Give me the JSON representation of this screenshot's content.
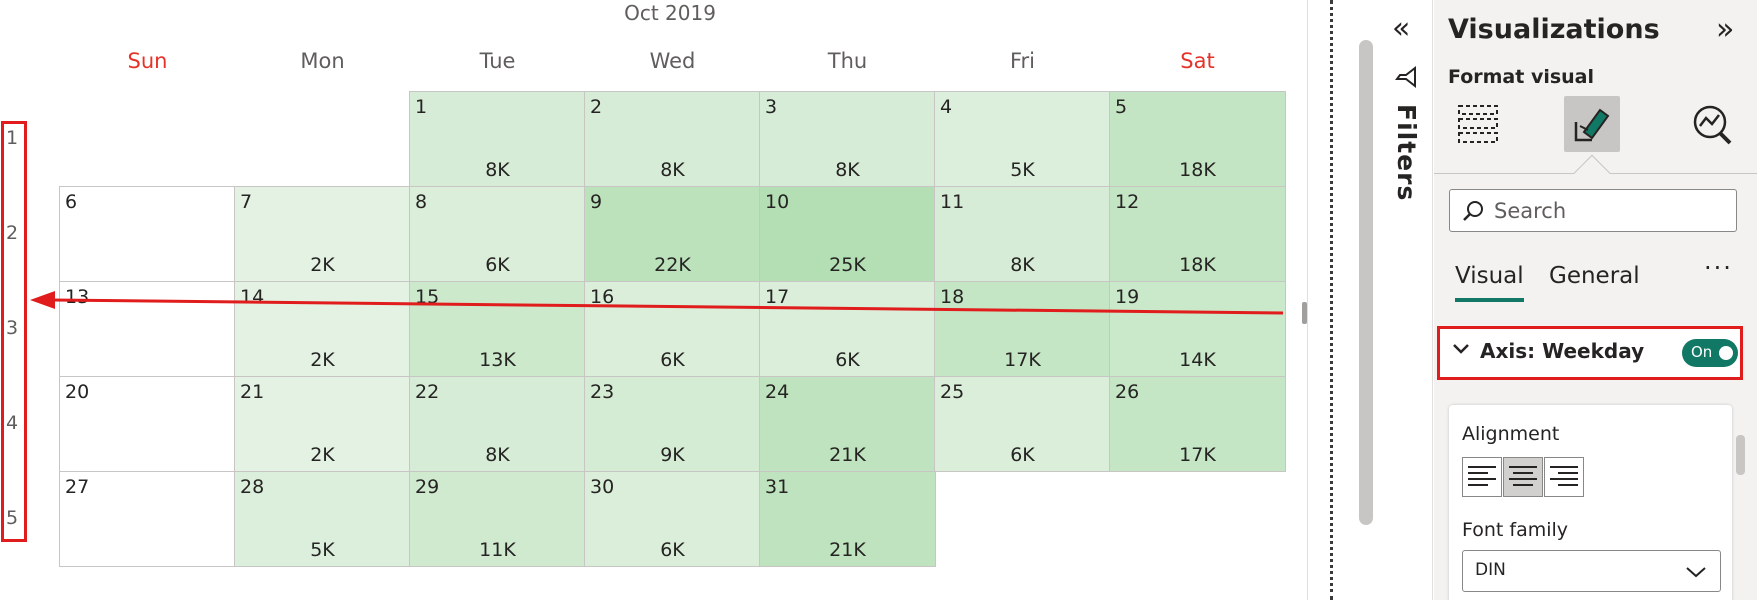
{
  "calendar": {
    "month_title": "Oct 2019",
    "weekdays": [
      {
        "label": "Sun",
        "weekend": true
      },
      {
        "label": "Mon",
        "weekend": false
      },
      {
        "label": "Tue",
        "weekend": false
      },
      {
        "label": "Wed",
        "weekend": false
      },
      {
        "label": "Thu",
        "weekend": false
      },
      {
        "label": "Fri",
        "weekend": false
      },
      {
        "label": "Sat",
        "weekend": true
      }
    ],
    "week_numbers": [
      "1",
      "2",
      "3",
      "4",
      "5"
    ],
    "days": [
      {
        "day": "1",
        "week": 0,
        "weekday": 2,
        "value": "8K",
        "fill": "#d6ecd6"
      },
      {
        "day": "2",
        "week": 0,
        "weekday": 3,
        "value": "8K",
        "fill": "#d6ecd6"
      },
      {
        "day": "3",
        "week": 0,
        "weekday": 4,
        "value": "8K",
        "fill": "#d6ecd6"
      },
      {
        "day": "4",
        "week": 0,
        "weekday": 5,
        "value": "5K",
        "fill": "#dcefdc"
      },
      {
        "day": "5",
        "week": 0,
        "weekday": 6,
        "value": "18K",
        "fill": "#c3e5c3"
      },
      {
        "day": "6",
        "week": 1,
        "weekday": 0,
        "value": "",
        "fill": "#ffffff"
      },
      {
        "day": "7",
        "week": 1,
        "weekday": 1,
        "value": "2K",
        "fill": "#e3f2e3"
      },
      {
        "day": "8",
        "week": 1,
        "weekday": 2,
        "value": "6K",
        "fill": "#daeeda"
      },
      {
        "day": "9",
        "week": 1,
        "weekday": 3,
        "value": "22K",
        "fill": "#bce2bc"
      },
      {
        "day": "10",
        "week": 1,
        "weekday": 4,
        "value": "25K",
        "fill": "#b4dfb4"
      },
      {
        "day": "11",
        "week": 1,
        "weekday": 5,
        "value": "8K",
        "fill": "#d6ecd6"
      },
      {
        "day": "12",
        "week": 1,
        "weekday": 6,
        "value": "18K",
        "fill": "#c3e5c3"
      },
      {
        "day": "13",
        "week": 2,
        "weekday": 0,
        "value": "",
        "fill": "#ffffff"
      },
      {
        "day": "14",
        "week": 2,
        "weekday": 1,
        "value": "2K",
        "fill": "#e3f2e3"
      },
      {
        "day": "15",
        "week": 2,
        "weekday": 2,
        "value": "13K",
        "fill": "#cce9cc"
      },
      {
        "day": "16",
        "week": 2,
        "weekday": 3,
        "value": "6K",
        "fill": "#daeeda"
      },
      {
        "day": "17",
        "week": 2,
        "weekday": 4,
        "value": "6K",
        "fill": "#daeeda"
      },
      {
        "day": "18",
        "week": 2,
        "weekday": 5,
        "value": "17K",
        "fill": "#c5e6c5"
      },
      {
        "day": "19",
        "week": 2,
        "weekday": 6,
        "value": "14K",
        "fill": "#cae8ca"
      },
      {
        "day": "20",
        "week": 3,
        "weekday": 0,
        "value": "",
        "fill": "#ffffff"
      },
      {
        "day": "21",
        "week": 3,
        "weekday": 1,
        "value": "2K",
        "fill": "#e3f2e3"
      },
      {
        "day": "22",
        "week": 3,
        "weekday": 2,
        "value": "8K",
        "fill": "#d6ecd6"
      },
      {
        "day": "23",
        "week": 3,
        "weekday": 3,
        "value": "9K",
        "fill": "#d4ebd4"
      },
      {
        "day": "24",
        "week": 3,
        "weekday": 4,
        "value": "21K",
        "fill": "#bee3be"
      },
      {
        "day": "25",
        "week": 3,
        "weekday": 5,
        "value": "6K",
        "fill": "#daeeda"
      },
      {
        "day": "26",
        "week": 3,
        "weekday": 6,
        "value": "17K",
        "fill": "#c5e6c5"
      },
      {
        "day": "27",
        "week": 4,
        "weekday": 0,
        "value": "",
        "fill": "#ffffff"
      },
      {
        "day": "28",
        "week": 4,
        "weekday": 1,
        "value": "5K",
        "fill": "#dcefdc"
      },
      {
        "day": "29",
        "week": 4,
        "weekday": 2,
        "value": "11K",
        "fill": "#d0ead0"
      },
      {
        "day": "30",
        "week": 4,
        "weekday": 3,
        "value": "6K",
        "fill": "#daeeda"
      },
      {
        "day": "31",
        "week": 4,
        "weekday": 4,
        "value": "21K",
        "fill": "#bee3be"
      }
    ]
  },
  "filters_pane": {
    "collapse_glyph": "«",
    "label": "Filters",
    "icon": "funnel-icon"
  },
  "visualizations_pane": {
    "title": "Visualizations",
    "expand_glyph": "»",
    "format_label": "Format visual",
    "tab_icons": [
      "build-visual-icon",
      "format-visual-icon",
      "analytics-icon"
    ],
    "search": {
      "placeholder": "Search",
      "value": ""
    },
    "tabs": [
      {
        "label": "Visual",
        "active": true
      },
      {
        "label": "General",
        "active": false
      }
    ],
    "more_options": "···",
    "axis_card": {
      "title": "Axis: Weekday",
      "toggle_label": "On",
      "expanded": true
    },
    "settings": {
      "alignment_label": "Alignment",
      "alignment_selected": "center",
      "font_family_label": "Font family",
      "font_family_value": "DIN"
    }
  },
  "colors": {
    "accent": "#117865",
    "highlight": "#e01c1c",
    "weekend_header": "#e6332a"
  }
}
